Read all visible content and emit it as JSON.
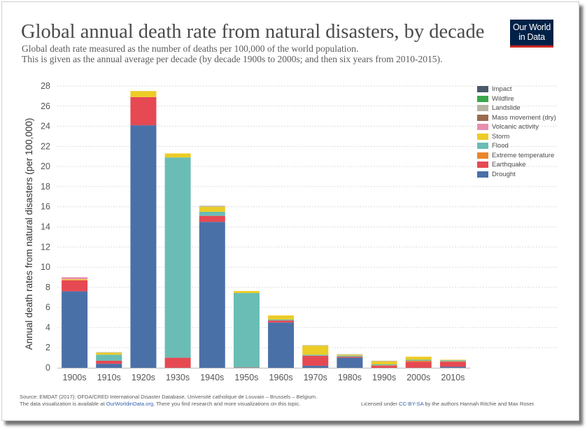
{
  "header": {
    "title": "Global annual death rate from natural disasters, by decade",
    "subtitle_line1": "Global death rate measured as the number of deaths per 100,000 of the world population.",
    "subtitle_line2": "This is given as the annual average per decade (by decade 1900s to 2000s; and then six years from 2010-2015).",
    "logo_line1": "Our World",
    "logo_line2": "in Data"
  },
  "footer": {
    "source": "Source: EMDAT (2017): OFDA/CRED International Disaster Database, Université catholique de Louvain – Brussels – Belgium.",
    "note_prefix": "The data visualization is available at ",
    "note_link": "OurWorldinData.org",
    "note_suffix": ". There you find research and more visualizations on this topic.",
    "license_prefix": "Licensed under ",
    "license_link": "CC-BY-SA",
    "license_suffix": " by the authors Hannah Ritchie and Max Roser."
  },
  "colors": {
    "Impact": "#4a5b6b",
    "Wildfire": "#3aa74a",
    "Landslide": "#b9b3a5",
    "Mass movement (dry)": "#9a6a4e",
    "Volcanic activity": "#e88fae",
    "Storm": "#eccc26",
    "Flood": "#69bdb4",
    "Extreme temperature": "#e9862a",
    "Earthquake": "#e64952",
    "Drought": "#4a70a8"
  },
  "legend_order": [
    "Impact",
    "Wildfire",
    "Landslide",
    "Mass movement (dry)",
    "Volcanic activity",
    "Storm",
    "Flood",
    "Extreme temperature",
    "Earthquake",
    "Drought"
  ],
  "chart_data": {
    "type": "bar",
    "stacked": true,
    "title": "Global annual death rate from natural disasters, by decade",
    "xlabel": "",
    "ylabel": "Annual death rates from natural disasters (per 100,000)",
    "ylim": [
      0,
      28
    ],
    "yticks": [
      0,
      2,
      4,
      6,
      8,
      10,
      12,
      14,
      16,
      18,
      20,
      22,
      24,
      26,
      28
    ],
    "grid": "horizontal dashed",
    "legend_position": "right",
    "categories": [
      "1900s",
      "1910s",
      "1920s",
      "1930s",
      "1940s",
      "1950s",
      "1960s",
      "1970s",
      "1980s",
      "1990s",
      "2000s",
      "2010s"
    ],
    "series": [
      {
        "name": "Drought",
        "values": [
          7.6,
          0.4,
          24.1,
          0.0,
          14.5,
          0.0,
          4.5,
          0.2,
          1.0,
          0.0,
          0.0,
          0.1
        ]
      },
      {
        "name": "Earthquake",
        "values": [
          1.1,
          0.3,
          2.8,
          1.0,
          0.6,
          0.03,
          0.2,
          1.0,
          0.1,
          0.2,
          0.6,
          0.5
        ]
      },
      {
        "name": "Extreme temperature",
        "values": [
          0.0,
          0.0,
          0.0,
          0.0,
          0.0,
          0.0,
          0.0,
          0.0,
          0.0,
          0.05,
          0.1,
          0.05
        ]
      },
      {
        "name": "Flood",
        "values": [
          0.0,
          0.6,
          0.0,
          19.9,
          0.4,
          7.4,
          0.1,
          0.1,
          0.1,
          0.1,
          0.1,
          0.1
        ]
      },
      {
        "name": "Storm",
        "values": [
          0.1,
          0.2,
          0.6,
          0.4,
          0.5,
          0.2,
          0.4,
          0.9,
          0.1,
          0.3,
          0.3,
          0.05
        ]
      },
      {
        "name": "Volcanic activity",
        "values": [
          0.2,
          0.0,
          0.0,
          0.0,
          0.0,
          0.0,
          0.0,
          0.0,
          0.0,
          0.0,
          0.0,
          0.0
        ]
      },
      {
        "name": "Mass movement (dry)",
        "values": [
          0.0,
          0.0,
          0.0,
          0.0,
          0.0,
          0.0,
          0.0,
          0.0,
          0.0,
          0.0,
          0.0,
          0.0
        ]
      },
      {
        "name": "Landslide",
        "values": [
          0.0,
          0.05,
          0.0,
          0.0,
          0.1,
          0.0,
          0.0,
          0.05,
          0.05,
          0.05,
          0.0,
          0.0
        ]
      },
      {
        "name": "Wildfire",
        "values": [
          0.0,
          0.0,
          0.0,
          0.0,
          0.0,
          0.0,
          0.0,
          0.0,
          0.0,
          0.0,
          0.0,
          0.0
        ]
      },
      {
        "name": "Impact",
        "values": [
          0.0,
          0.0,
          0.0,
          0.0,
          0.0,
          0.0,
          0.0,
          0.0,
          0.0,
          0.0,
          0.0,
          0.0
        ]
      }
    ]
  }
}
